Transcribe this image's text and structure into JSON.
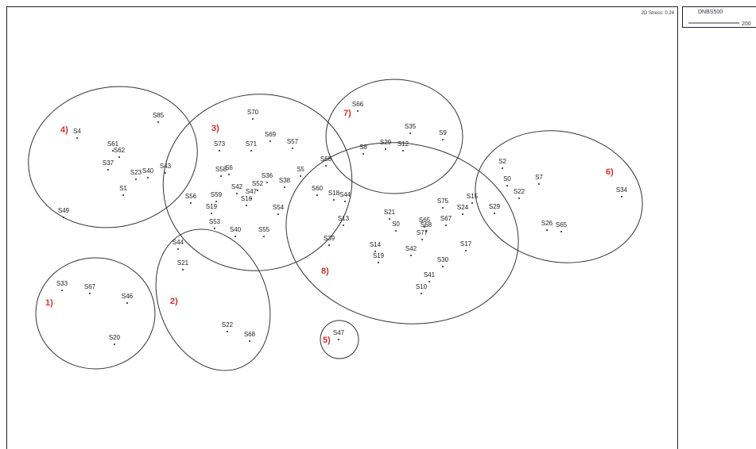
{
  "stress": "2D Stress: 0.24",
  "legend": {
    "title": "DNBS500",
    "value": "200"
  },
  "clusters": [
    "1)",
    "2)",
    "3)",
    "4)",
    "5)",
    "6)",
    "7)",
    "8)"
  ],
  "samples": [
    "S4",
    "S85",
    "S61",
    "S62",
    "S37",
    "S23",
    "S40",
    "S43",
    "S1",
    "S49",
    "S70",
    "S73",
    "S71",
    "S69",
    "S57",
    "S58",
    "S6",
    "S36",
    "S5",
    "S42",
    "S52",
    "S47",
    "S16",
    "S38",
    "S56",
    "S59",
    "S19",
    "S54",
    "S53",
    "S40",
    "S55",
    "S66",
    "S35",
    "S9",
    "S8",
    "S29",
    "S12",
    "S68",
    "S60",
    "S18",
    "S44",
    "S13",
    "S21",
    "S0",
    "S39",
    "S14",
    "S19",
    "S75",
    "S65",
    "S68",
    "S67",
    "S77",
    "S42",
    "S17",
    "S30",
    "S41",
    "S10",
    "S15",
    "S24",
    "S2",
    "S0",
    "S22",
    "S7",
    "S34",
    "S29",
    "S26",
    "S65",
    "S44",
    "S21",
    "S22",
    "S68",
    "S33",
    "S67",
    "S46",
    "S20",
    "S47"
  ]
}
